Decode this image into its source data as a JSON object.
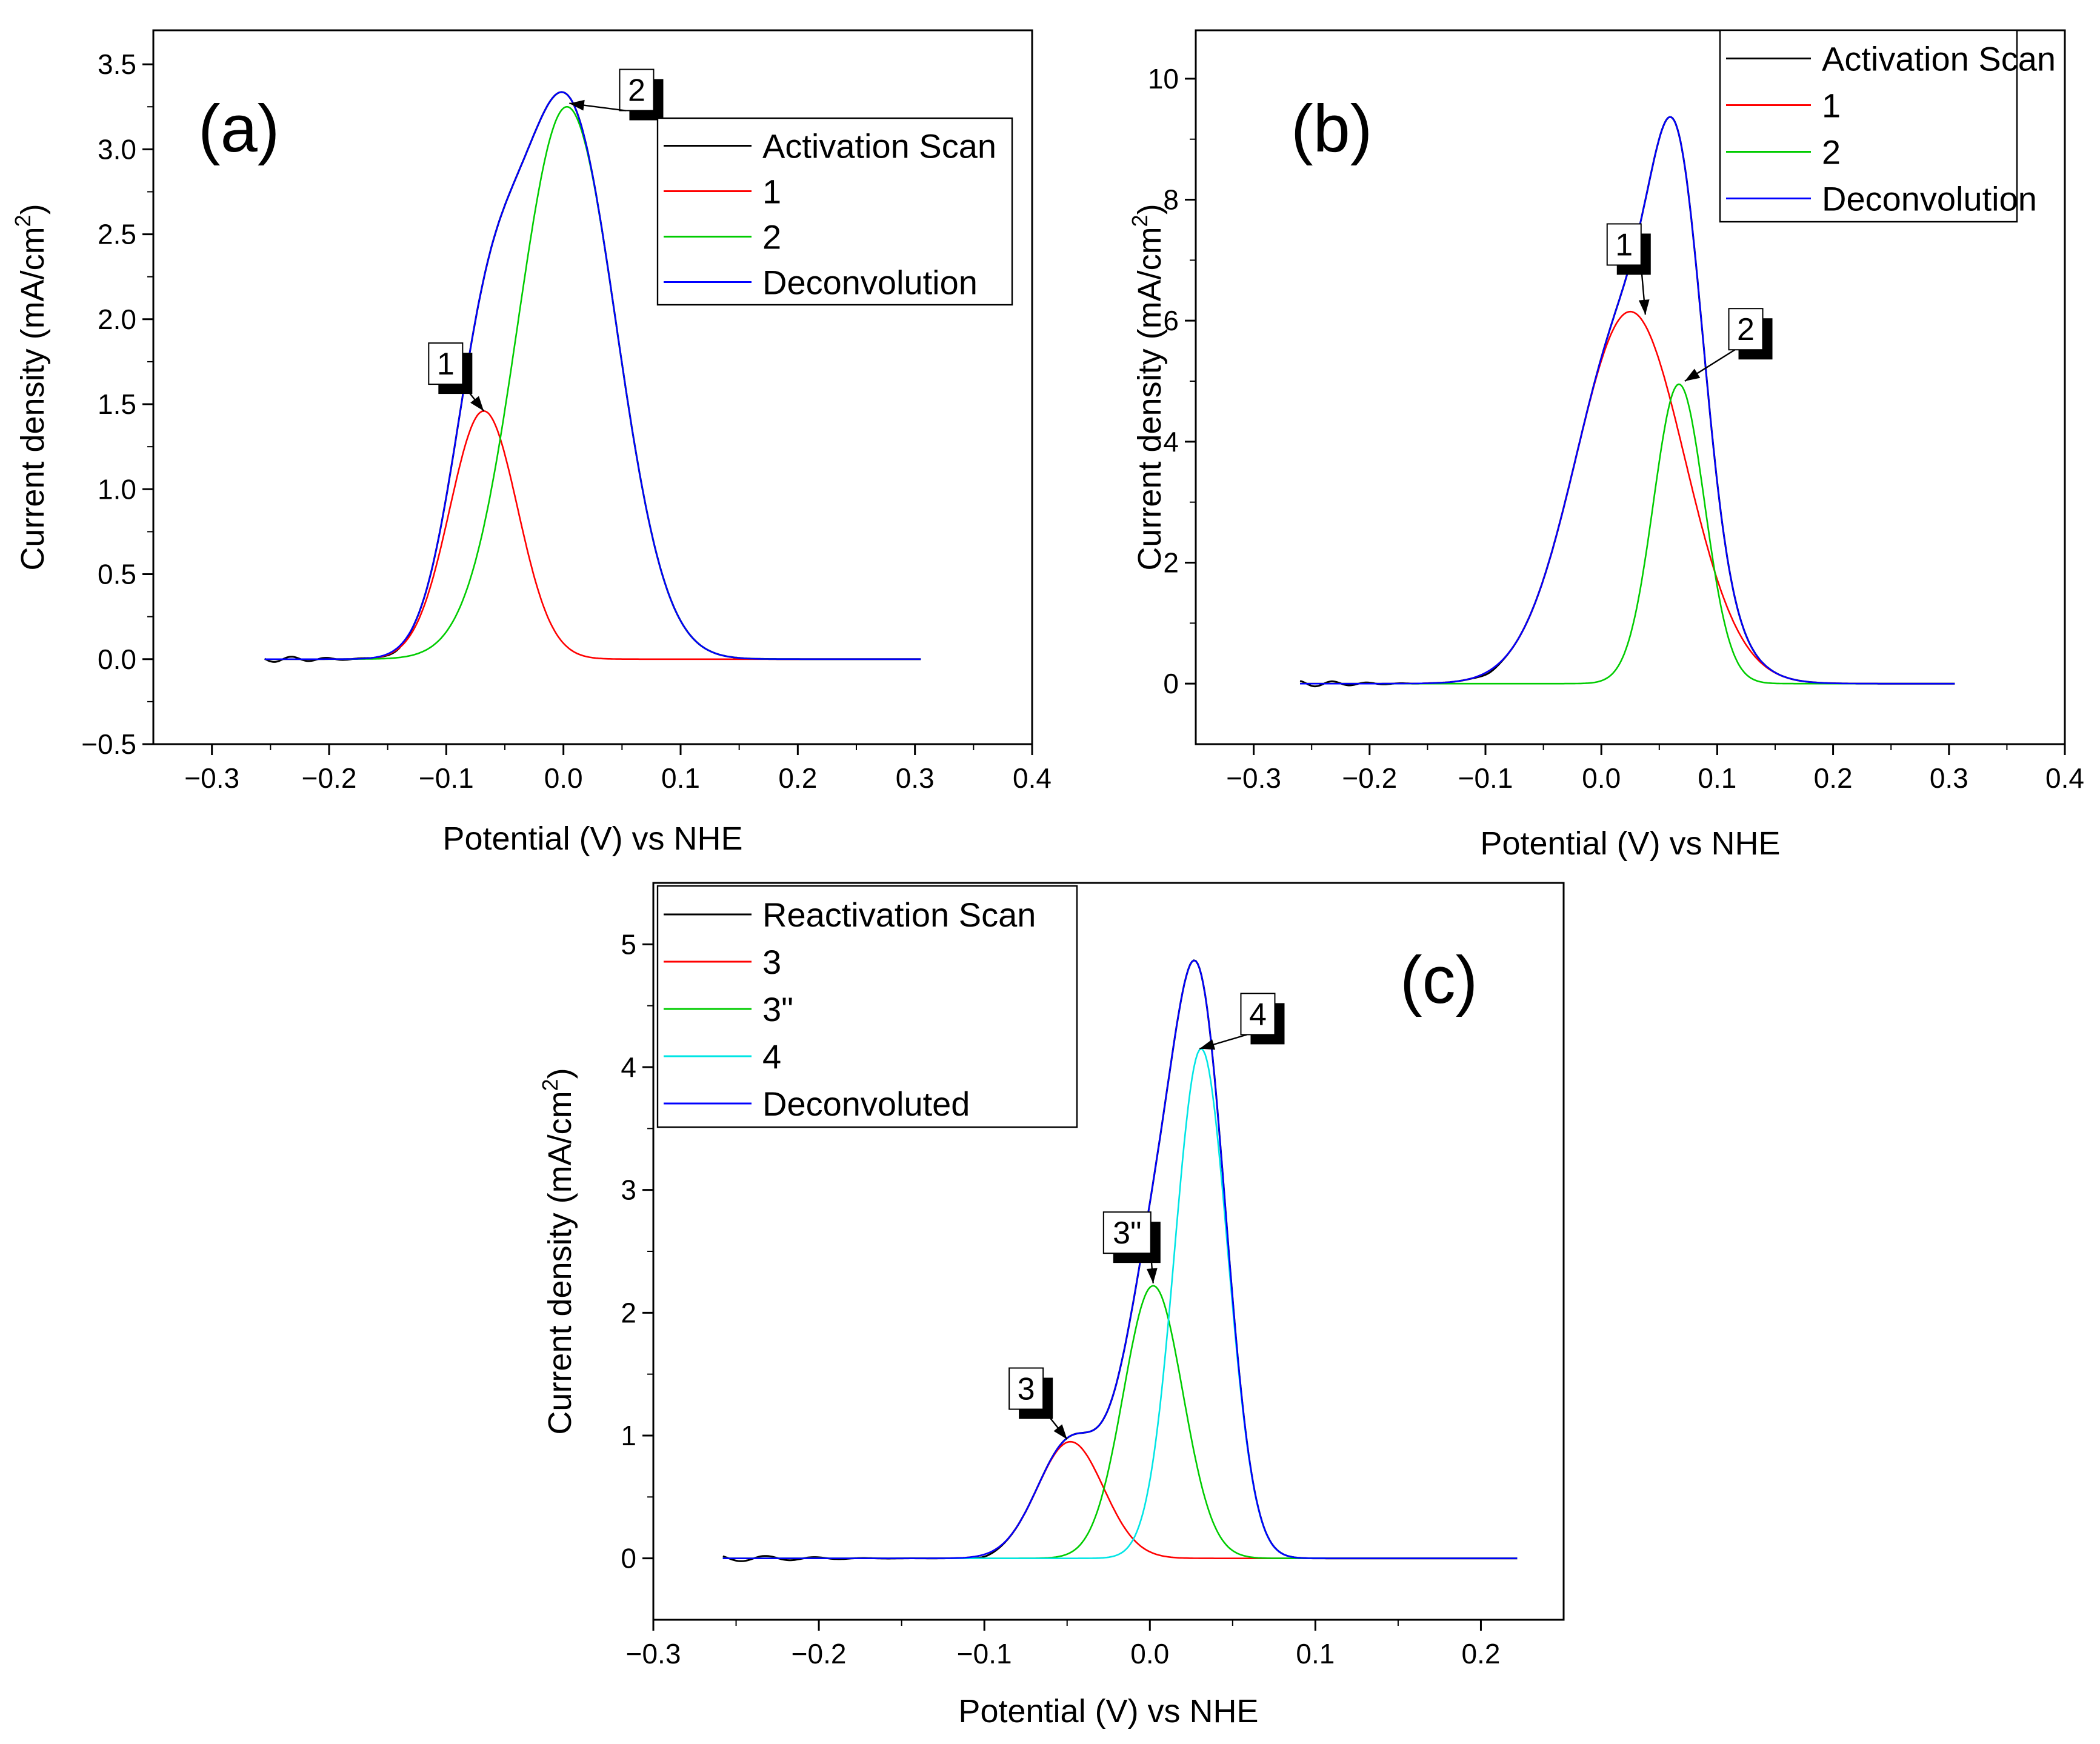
{
  "chart_data": [
    {
      "id": "a",
      "type": "line",
      "panel_label": "(a)",
      "xlabel": "Potential (V) vs NHE",
      "ylabel": "Current density (mA/cm²)",
      "ylabel_parts": {
        "main": "Current density (mA/cm",
        "sup": "2",
        "close": ")"
      },
      "xlim": [
        -0.35,
        0.4
      ],
      "ylim": [
        -0.5,
        3.7
      ],
      "xticks": [
        -0.3,
        -0.2,
        -0.1,
        0.0,
        0.1,
        0.2,
        0.3,
        0.4
      ],
      "xtick_labels": [
        "−0.3",
        "−0.2",
        "−0.1",
        "0.0",
        "0.1",
        "0.2",
        "0.3",
        "0.4"
      ],
      "yticks": [
        -0.5,
        0.0,
        0.5,
        1.0,
        1.5,
        2.0,
        2.5,
        3.0,
        3.5
      ],
      "ytick_labels": [
        "−0.5",
        "0.0",
        "0.5",
        "1.0",
        "1.5",
        "2.0",
        "2.5",
        "3.0",
        "3.5"
      ],
      "x_range": [
        -0.255,
        0.305
      ],
      "legend_position": "top-right",
      "series": [
        {
          "name": "Activation Scan",
          "color": "#000000",
          "kind": "measured",
          "components": [
            0,
            1
          ],
          "noise": true
        },
        {
          "name": "1",
          "color": "#ff0000",
          "kind": "gauss",
          "amp": 1.46,
          "center": -0.068,
          "sigma": 0.029
        },
        {
          "name": "2",
          "color": "#00cc00",
          "kind": "gauss",
          "amp": 3.25,
          "center": 0.003,
          "sigma": 0.042
        },
        {
          "name": "Deconvolution",
          "color": "#0000ff",
          "kind": "sum",
          "components": [
            0,
            1
          ]
        }
      ],
      "annotations": [
        {
          "text": "1",
          "x": -0.115,
          "y": 1.86,
          "target_x": -0.068,
          "target_y": 1.46
        },
        {
          "text": "2",
          "x": 0.048,
          "y": 3.47,
          "target_x": 0.005,
          "target_y": 3.27
        }
      ]
    },
    {
      "id": "b",
      "type": "line",
      "panel_label": "(b)",
      "xlabel": "Potential (V) vs NHE",
      "ylabel": "Current density (mA/cm²)",
      "ylabel_parts": {
        "main": "Current density (mA/cm",
        "sup": "2",
        "close": ")"
      },
      "xlim": [
        -0.35,
        0.4
      ],
      "ylim": [
        -1.0,
        10.8
      ],
      "xticks": [
        -0.3,
        -0.2,
        -0.1,
        0.0,
        0.1,
        0.2,
        0.3,
        0.4
      ],
      "xtick_labels": [
        "−0.3",
        "−0.2",
        "−0.1",
        "0.0",
        "0.1",
        "0.2",
        "0.3",
        "0.4"
      ],
      "yticks": [
        0,
        2,
        4,
        6,
        8,
        10
      ],
      "ytick_labels": [
        "0",
        "2",
        "4",
        "6",
        "8",
        "10"
      ],
      "x_range": [
        -0.26,
        0.305
      ],
      "legend_position": "top-right",
      "series": [
        {
          "name": "Activation Scan",
          "color": "#000000",
          "kind": "measured",
          "components": [
            0,
            1
          ],
          "noise": true
        },
        {
          "name": "1",
          "color": "#ff0000",
          "kind": "gauss",
          "amp": 6.15,
          "center": 0.025,
          "sigma": 0.047
        },
        {
          "name": "2",
          "color": "#00cc00",
          "kind": "gauss",
          "amp": 4.95,
          "center": 0.067,
          "sigma": 0.022
        },
        {
          "name": "Deconvolution",
          "color": "#0000ff",
          "kind": "sum",
          "components": [
            0,
            1
          ]
        }
      ],
      "annotations": [
        {
          "text": "1",
          "x": 0.005,
          "y": 7.6,
          "target_x": 0.038,
          "target_y": 6.1
        },
        {
          "text": "2",
          "x": 0.11,
          "y": 6.2,
          "target_x": 0.072,
          "target_y": 5.0
        }
      ]
    },
    {
      "id": "c",
      "type": "line",
      "panel_label": "(c)",
      "xlabel": "Potential (V) vs NHE",
      "ylabel": "Current density (mA/cm²)",
      "ylabel_parts": {
        "main": "Current density (mA/cm",
        "sup": "2",
        "close": ")"
      },
      "xlim": [
        -0.3,
        0.25
      ],
      "ylim": [
        -0.5,
        5.5
      ],
      "xticks": [
        -0.3,
        -0.2,
        -0.1,
        0.0,
        0.1,
        0.2
      ],
      "xtick_labels": [
        "−0.3",
        "−0.2",
        "−0.1",
        "0.0",
        "0.1",
        "0.2"
      ],
      "yticks": [
        0,
        1,
        2,
        3,
        4,
        5
      ],
      "ytick_labels": [
        "0",
        "1",
        "2",
        "3",
        "4",
        "5"
      ],
      "x_range": [
        -0.258,
        0.222
      ],
      "legend_position": "top-left",
      "series": [
        {
          "name": "Reactivation Scan",
          "color": "#000000",
          "kind": "measured",
          "components": [
            0,
            1,
            2
          ],
          "noise": true
        },
        {
          "name": "3",
          "color": "#ff0000",
          "kind": "gauss",
          "amp": 0.95,
          "center": -0.048,
          "sigma": 0.02
        },
        {
          "name": "3\"",
          "color": "#00cc00",
          "kind": "gauss",
          "amp": 2.22,
          "center": 0.002,
          "sigma": 0.018
        },
        {
          "name": "4",
          "color": "#00e5e5",
          "kind": "gauss",
          "amp": 4.15,
          "center": 0.031,
          "sigma": 0.016
        },
        {
          "name": "Deconvoluted",
          "color": "#0000ff",
          "kind": "sum",
          "components": [
            0,
            1,
            2
          ]
        }
      ],
      "annotations": [
        {
          "text": "3",
          "x": -0.085,
          "y": 1.55,
          "target_x": -0.05,
          "target_y": 0.97
        },
        {
          "text": "3\"",
          "x": -0.028,
          "y": 2.82,
          "target_x": 0.002,
          "target_y": 2.24
        },
        {
          "text": "4",
          "x": 0.055,
          "y": 4.6,
          "target_x": 0.03,
          "target_y": 4.15
        }
      ]
    }
  ]
}
